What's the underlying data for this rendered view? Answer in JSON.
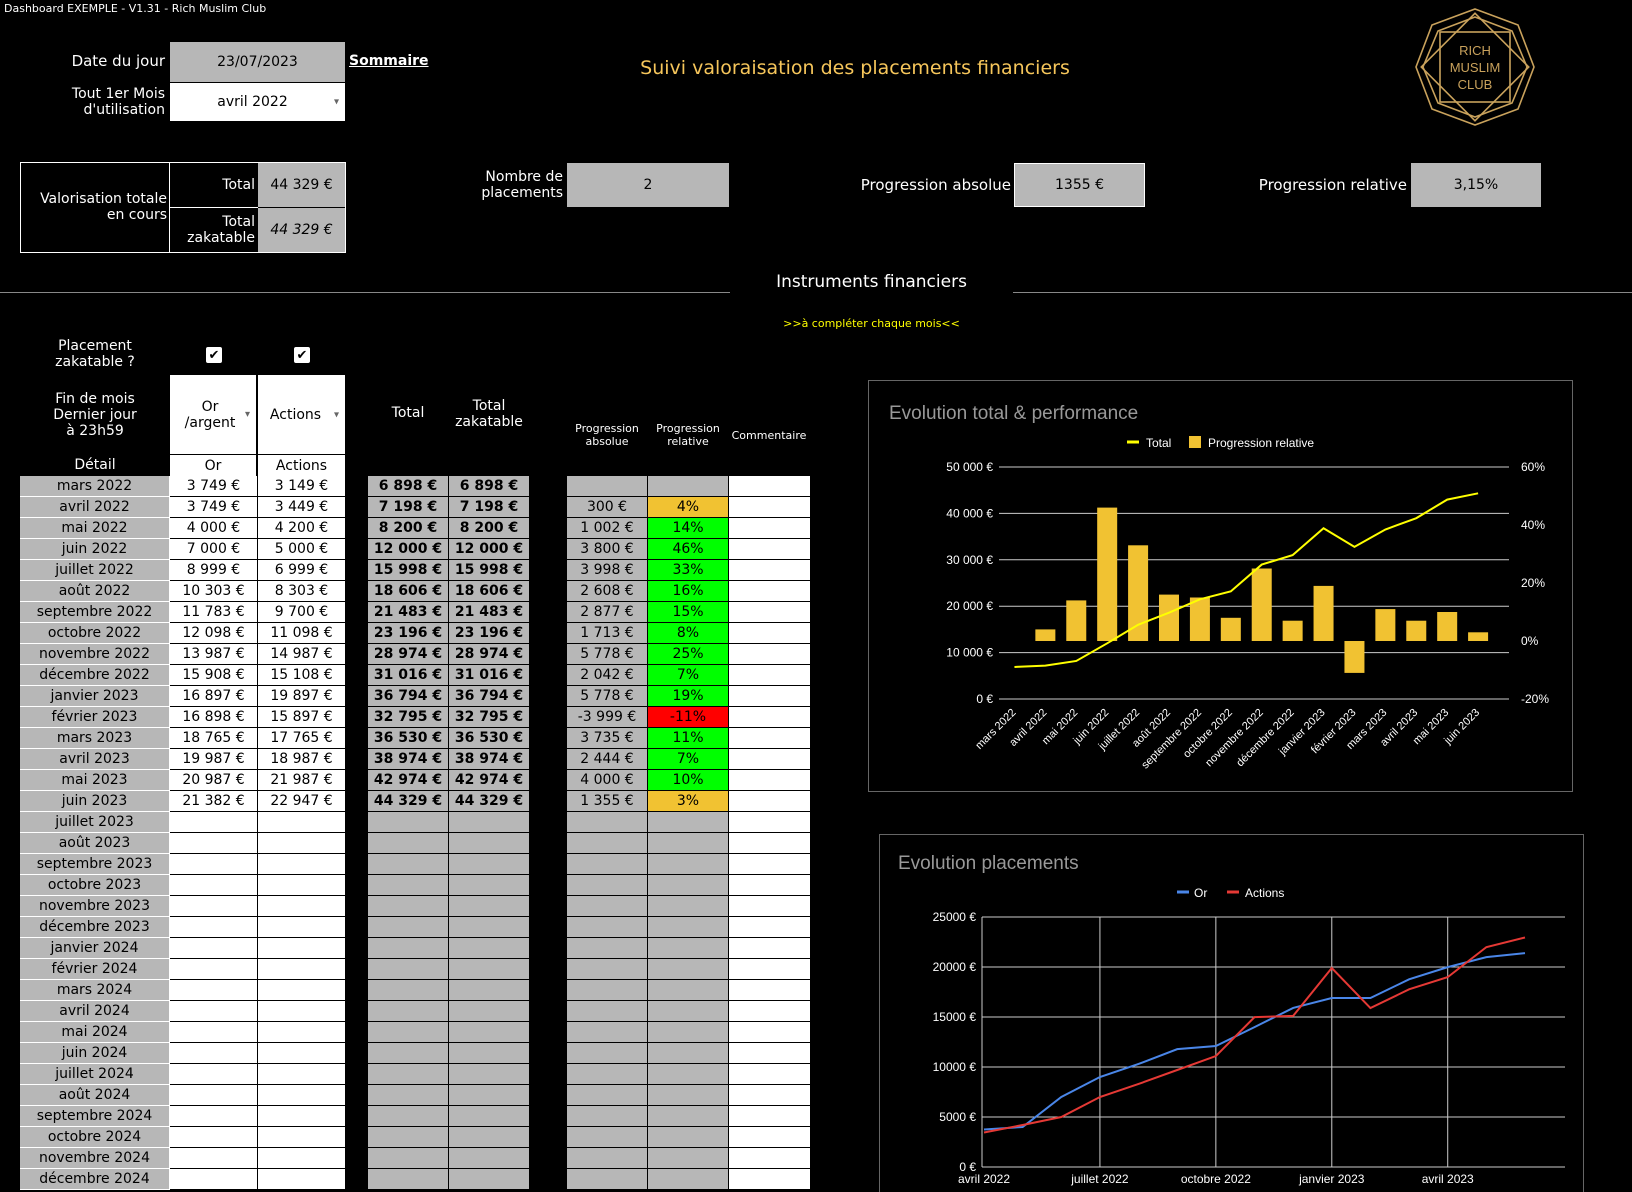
{
  "window_title": "Dashboard EXEMPLE - V1.31 - Rich Muslim Club",
  "header": {
    "date_label": "Date du jour",
    "date_value": "23/07/2023",
    "sommaire_link": "Sommaire",
    "first_month_label_1": "Tout 1er Mois",
    "first_month_label_2": "d'utilisation",
    "first_month_value": "avril 2022",
    "title": "Suivi valoraisation des placements financiers",
    "logo_text_1": "RICH",
    "logo_text_2": "MUSLIM",
    "logo_text_3": "CLUB"
  },
  "summary": {
    "valorisation_label_1": "Valorisation totale",
    "valorisation_label_2": "en cours",
    "total_label": "Total",
    "total_value": "44 329 €",
    "zakatable_label_1": "Total",
    "zakatable_label_2": "zakatable",
    "zakatable_value": "44 329 €",
    "nb_placements_label_1": "Nombre de",
    "nb_placements_label_2": "placements",
    "nb_placements_value": "2",
    "prog_abs_label": "Progression absolue",
    "prog_abs_value": "1355 €",
    "prog_rel_label": "Progression relative",
    "prog_rel_value": "3,15%"
  },
  "section": {
    "title": "Instruments financiers",
    "hint": ">>à compléter chaque mois<<"
  },
  "table_head": {
    "zakatable_q_1": "Placement",
    "zakatable_q_2": "zakatable ?",
    "fin_mois_1": "Fin de mois",
    "fin_mois_2": "Dernier jour",
    "fin_mois_3": "à 23h59",
    "detail": "Détail",
    "col1_select_1": "Or",
    "col1_select_2": "/argent",
    "col2_select": "Actions",
    "col1_detail": "Or",
    "col2_detail": "Actions",
    "total": "Total",
    "total_zak_1": "Total",
    "total_zak_2": "zakatable",
    "prog_abs_1": "Progression",
    "prog_abs_2": "absolue",
    "prog_rel_1": "Progression",
    "prog_rel_2": "relative",
    "commentaire": "Commentaire"
  },
  "rows": [
    {
      "m": "mars 2022",
      "or": "3 749 €",
      "act": "3 149 €",
      "tot": "6 898 €",
      "zak": "6 898 €",
      "pa": "",
      "pr": "",
      "c": ""
    },
    {
      "m": "avril 2022",
      "or": "3 749 €",
      "act": "3 449 €",
      "tot": "7 198 €",
      "zak": "7 198 €",
      "pa": "300 €",
      "pr": "4%",
      "c": "#f1c232"
    },
    {
      "m": "mai 2022",
      "or": "4 000 €",
      "act": "4 200 €",
      "tot": "8 200 €",
      "zak": "8 200 €",
      "pa": "1 002 €",
      "pr": "14%",
      "c": "#00ff00"
    },
    {
      "m": "juin 2022",
      "or": "7 000 €",
      "act": "5 000 €",
      "tot": "12 000 €",
      "zak": "12 000 €",
      "pa": "3 800 €",
      "pr": "46%",
      "c": "#00ff00"
    },
    {
      "m": "juillet 2022",
      "or": "8 999 €",
      "act": "6 999 €",
      "tot": "15 998 €",
      "zak": "15 998 €",
      "pa": "3 998 €",
      "pr": "33%",
      "c": "#00ff00"
    },
    {
      "m": "août 2022",
      "or": "10 303 €",
      "act": "8 303 €",
      "tot": "18 606 €",
      "zak": "18 606 €",
      "pa": "2 608 €",
      "pr": "16%",
      "c": "#00ff00"
    },
    {
      "m": "septembre 2022",
      "or": "11 783 €",
      "act": "9 700 €",
      "tot": "21 483 €",
      "zak": "21 483 €",
      "pa": "2 877 €",
      "pr": "15%",
      "c": "#00ff00"
    },
    {
      "m": "octobre 2022",
      "or": "12 098 €",
      "act": "11 098 €",
      "tot": "23 196 €",
      "zak": "23 196 €",
      "pa": "1 713 €",
      "pr": "8%",
      "c": "#00ff00"
    },
    {
      "m": "novembre 2022",
      "or": "13 987 €",
      "act": "14 987 €",
      "tot": "28 974 €",
      "zak": "28 974 €",
      "pa": "5 778 €",
      "pr": "25%",
      "c": "#00ff00"
    },
    {
      "m": "décembre 2022",
      "or": "15 908 €",
      "act": "15 108 €",
      "tot": "31 016 €",
      "zak": "31 016 €",
      "pa": "2 042 €",
      "pr": "7%",
      "c": "#00ff00"
    },
    {
      "m": "janvier 2023",
      "or": "16 897 €",
      "act": "19 897 €",
      "tot": "36 794 €",
      "zak": "36 794 €",
      "pa": "5 778 €",
      "pr": "19%",
      "c": "#00ff00"
    },
    {
      "m": "février 2023",
      "or": "16 898 €",
      "act": "15 897 €",
      "tot": "32 795 €",
      "zak": "32 795 €",
      "pa": "-3 999 €",
      "pr": "-11%",
      "c": "#ff0000"
    },
    {
      "m": "mars 2023",
      "or": "18 765 €",
      "act": "17 765 €",
      "tot": "36 530 €",
      "zak": "36 530 €",
      "pa": "3 735 €",
      "pr": "11%",
      "c": "#00ff00"
    },
    {
      "m": "avril 2023",
      "or": "19 987 €",
      "act": "18 987 €",
      "tot": "38 974 €",
      "zak": "38 974 €",
      "pa": "2 444 €",
      "pr": "7%",
      "c": "#00ff00"
    },
    {
      "m": "mai 2023",
      "or": "20 987 €",
      "act": "21 987 €",
      "tot": "42 974 €",
      "zak": "42 974 €",
      "pa": "4 000 €",
      "pr": "10%",
      "c": "#00ff00"
    },
    {
      "m": "juin 2023",
      "or": "21 382 €",
      "act": "22 947 €",
      "tot": "44 329 €",
      "zak": "44 329 €",
      "pa": "1 355 €",
      "pr": "3%",
      "c": "#f1c232"
    },
    {
      "m": "juillet 2023"
    },
    {
      "m": "août 2023"
    },
    {
      "m": "septembre 2023"
    },
    {
      "m": "octobre 2023"
    },
    {
      "m": "novembre 2023"
    },
    {
      "m": "décembre 2023"
    },
    {
      "m": "janvier 2024"
    },
    {
      "m": "février 2024"
    },
    {
      "m": "mars 2024"
    },
    {
      "m": "avril 2024"
    },
    {
      "m": "mai 2024"
    },
    {
      "m": "juin 2024"
    },
    {
      "m": "juillet 2024"
    },
    {
      "m": "août 2024"
    },
    {
      "m": "septembre 2024"
    },
    {
      "m": "octobre 2024"
    },
    {
      "m": "novembre 2024"
    },
    {
      "m": "décembre 2024"
    }
  ],
  "chart_data": [
    {
      "type": "bar",
      "title": "Evolution total & performance",
      "categories": [
        "mars 2022",
        "avril 2022",
        "mai 2022",
        "juin 2022",
        "juillet 2022",
        "août 2022",
        "septembre 2022",
        "octobre 2022",
        "novembre 2022",
        "décembre 2022",
        "janvier 2023",
        "février 2023",
        "mars 2023",
        "avril 2023",
        "mai 2023",
        "juin 2023"
      ],
      "series": [
        {
          "name": "Total",
          "kind": "line",
          "axis": "left",
          "color": "#ffff00",
          "values": [
            6898,
            7198,
            8200,
            12000,
            15998,
            18606,
            21483,
            23196,
            28974,
            31016,
            36794,
            32795,
            36530,
            38974,
            42974,
            44329
          ]
        },
        {
          "name": "Progression relative",
          "kind": "bar",
          "axis": "right",
          "color": "#f1c232",
          "values": [
            null,
            4,
            14,
            46,
            33,
            16,
            15,
            8,
            25,
            7,
            19,
            -11,
            11,
            7,
            10,
            3
          ]
        }
      ],
      "left_ticks": [
        "0 €",
        "10 000 €",
        "20 000 €",
        "30 000 €",
        "40 000 €",
        "50 000 €"
      ],
      "right_ticks": [
        "-20%",
        "0%",
        "20%",
        "40%",
        "60%"
      ],
      "ylim_left": [
        0,
        50000
      ],
      "ylim_right": [
        -20,
        60
      ],
      "legend": "top"
    },
    {
      "type": "line",
      "title": "Evolution placements",
      "categories": [
        "avril 2022",
        "mai 2022",
        "juin 2022",
        "juillet 2022",
        "août 2022",
        "septembre 2022",
        "octobre 2022",
        "novembre 2022",
        "décembre 2022",
        "janvier 2023",
        "février 2023",
        "mars 2023",
        "avril 2023",
        "mai 2023",
        "juin 2023"
      ],
      "x_tick_labels": [
        "avril 2022",
        "juillet 2022",
        "octobre 2022",
        "janvier 2023",
        "avril 2023"
      ],
      "series": [
        {
          "name": "Or",
          "color": "#4a86e8",
          "values": [
            3749,
            4000,
            7000,
            8999,
            10303,
            11783,
            12098,
            13987,
            15908,
            16897,
            16898,
            18765,
            19987,
            20987,
            21382
          ]
        },
        {
          "name": "Actions",
          "color": "#e53935",
          "values": [
            3449,
            4200,
            5000,
            6999,
            8303,
            9700,
            11098,
            14987,
            15108,
            19897,
            15897,
            17765,
            18987,
            21987,
            22947
          ]
        }
      ],
      "y_ticks": [
        "0 €",
        "5000 €",
        "10000 €",
        "15000 €",
        "20000 €",
        "25000 €"
      ],
      "ylim": [
        0,
        25000
      ],
      "legend": "top"
    }
  ]
}
